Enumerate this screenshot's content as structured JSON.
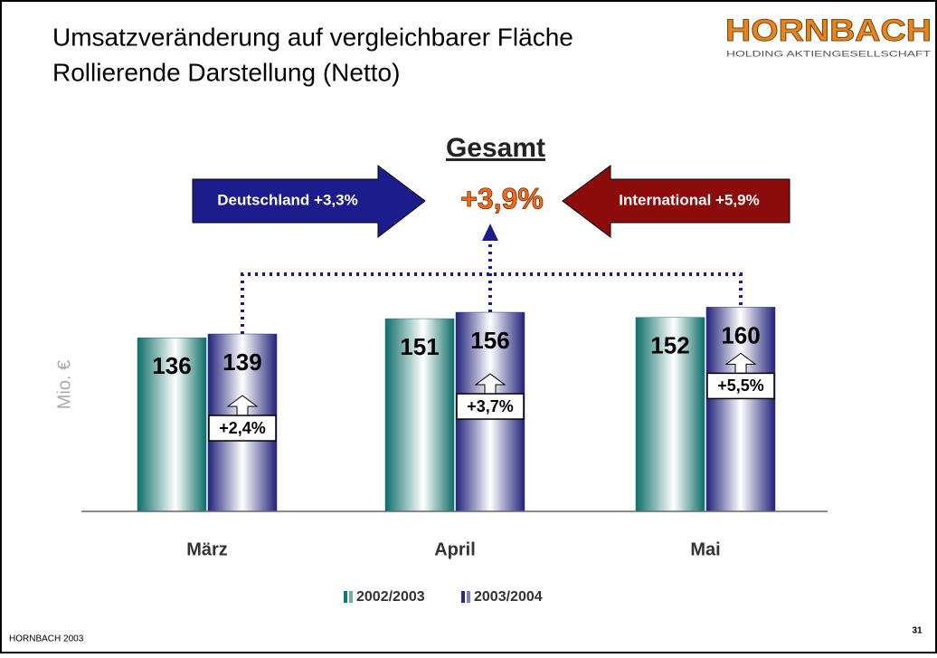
{
  "title_lines": [
    "Umsatzveränderung auf vergleichbarer Fläche",
    "Rollierende Darstellung (Netto)"
  ],
  "logo": {
    "name": "HORNBACH",
    "subtitle": "HOLDING AKTIENGESELLSCHAFT"
  },
  "footer": "HORNBACH  2003",
  "page_number": "31",
  "chart_data": {
    "type": "bar",
    "ylabel": "Mio. €",
    "headline": "Gesamt",
    "total_label": "+3,9%",
    "left_arrow": "Deutschland +3,3%",
    "right_arrow": "International +5,9%",
    "categories": [
      "März",
      "April",
      "Mai"
    ],
    "series": [
      {
        "name": "2002/2003",
        "color": "#0e7a72",
        "values": [
          136,
          151,
          152
        ]
      },
      {
        "name": "2003/2004",
        "color": "#2a2a8a",
        "values": [
          139,
          156,
          160
        ]
      }
    ],
    "changes": {
      "values": [
        2.4,
        3.7,
        5.5
      ],
      "value_labels": [
        "+2,4%",
        "+3,7%",
        "+5,5%"
      ]
    },
    "ylim": [
      0,
      200
    ]
  }
}
